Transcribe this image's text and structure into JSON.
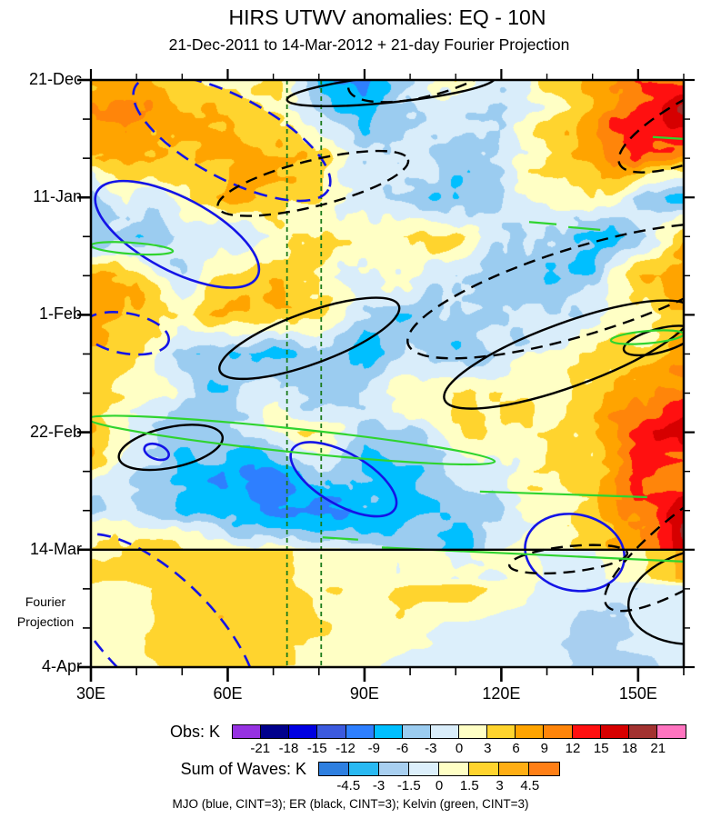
{
  "title": "HIRS UTWV anomalies: EQ - 10N",
  "subtitle": "21-Dec-2011 to 14-Mar-2012 + 21-day Fourier Projection",
  "y_axis": {
    "tick_labels": [
      "21-Dec",
      "11-Jan",
      "1-Feb",
      "22-Feb",
      "14-Mar",
      "4-Apr"
    ],
    "tick_days": [
      0,
      21,
      42,
      63,
      84,
      105
    ],
    "projection_label_line1": "Fourier",
    "projection_label_line2": "Projection"
  },
  "x_axis": {
    "tick_labels": [
      "30E",
      "60E",
      "90E",
      "120E",
      "150E"
    ],
    "tick_lons": [
      30,
      60,
      90,
      120,
      150
    ]
  },
  "colorbars": [
    {
      "label": "Obs: K",
      "ticks": [
        "-21",
        "-18",
        "-15",
        "-12",
        "-9",
        "-6",
        "-3",
        "0",
        "3",
        "6",
        "9",
        "12",
        "15",
        "18",
        "21"
      ],
      "colors": [
        "#9632E1",
        "#00008C",
        "#0000E1",
        "#3C5ADE",
        "#2E7FFF",
        "#00BFFF",
        "#9BCCF0",
        "#D9EDFA",
        "#FFFFC5",
        "#FFD42E",
        "#FFA400",
        "#FF850A",
        "#FF1010",
        "#D60000",
        "#A23230",
        "#FF74C0"
      ]
    },
    {
      "label": "Sum of Waves: K",
      "ticks": [
        "-4.5",
        "-3",
        "-1.5",
        "0",
        "1.5",
        "3",
        "4.5"
      ],
      "colors": [
        "#2E7FE0",
        "#29B9F2",
        "#A8CFF0",
        "#DCEFFB",
        "#FFFFC5",
        "#FFD42E",
        "#FFAE14",
        "#FF7F16"
      ]
    }
  ],
  "legend": "MJO (blue, CINT=3); ER (black, CINT=3); Kelvin (green, CINT=3)",
  "chart_data": {
    "type": "heatmap",
    "title": "HIRS UTWV anomalies: EQ - 10N",
    "subtitle": "21-Dec-2011 to 14-Mar-2012 + 21-day Fourier Projection",
    "x_range_lon_deg_east": [
      30,
      160
    ],
    "y_range_days_from_21Dec2011": [
      0,
      105
    ],
    "observation_end_day": 84,
    "dates": {
      "start": "21-Dec-2011",
      "obs_end": "14-Mar-2012",
      "projection_end": "4-Apr-2012"
    },
    "fill_levels_obs_K": [
      -21,
      -18,
      -15,
      -12,
      -9,
      -6,
      -3,
      0,
      3,
      6,
      9,
      12,
      15,
      18,
      21
    ],
    "fill_levels_sum_K": [
      -4.5,
      -3,
      -1.5,
      0,
      1.5,
      3,
      4.5
    ],
    "lons": [
      30,
      40,
      50,
      60,
      70,
      80,
      90,
      100,
      110,
      120,
      130,
      140,
      150,
      160
    ],
    "days": [
      0,
      7,
      14,
      21,
      28,
      35,
      42,
      49,
      56,
      63,
      70,
      77,
      84,
      91,
      98,
      105
    ],
    "note": "values_K is an approximate reading of the filled anomaly contours; rows 0-12 are observed (K, CINT=3), rows 13-15 are the Fourier projection (sum-of-waves K, CINT=1.5)",
    "values_K": [
      [
        4,
        8,
        5,
        2,
        4,
        -8,
        -9,
        -3,
        1,
        -3,
        4,
        8,
        10,
        12
      ],
      [
        10,
        9,
        6,
        7,
        3,
        -2,
        -6,
        -5,
        -2,
        -4,
        2,
        8,
        14,
        19
      ],
      [
        5,
        7,
        5,
        6,
        6,
        4,
        -2,
        1,
        -5,
        -2,
        4,
        7,
        12,
        8
      ],
      [
        -3,
        -2,
        2,
        6,
        6,
        3,
        -2,
        -4,
        -7,
        -3,
        1,
        4,
        -4,
        -6
      ],
      [
        -5,
        -6,
        -4,
        -2,
        1,
        3,
        2,
        4,
        3,
        -2,
        -5,
        -7,
        -4,
        4
      ],
      [
        6,
        4,
        -2,
        3,
        5,
        2,
        -2,
        1,
        -3,
        -4,
        -6,
        -4,
        6,
        8
      ],
      [
        8,
        6,
        3,
        6,
        7,
        4,
        -4,
        -6,
        -3,
        -2,
        -4,
        -2,
        2,
        6
      ],
      [
        4,
        2,
        -4,
        -6,
        -8,
        -4,
        -6,
        -3,
        -5,
        -2,
        1,
        2,
        4,
        6
      ],
      [
        5,
        3,
        -2,
        -5,
        -3,
        -6,
        -2,
        2,
        3,
        4,
        3,
        4,
        8,
        12
      ],
      [
        6,
        -3,
        -6,
        -4,
        1,
        2,
        -4,
        -3,
        2,
        3,
        2,
        6,
        12,
        16
      ],
      [
        2,
        -4,
        -5,
        -8,
        -11,
        -4,
        -6,
        -8,
        -4,
        -2,
        4,
        3,
        14,
        10
      ],
      [
        -2,
        -4,
        -6,
        -8,
        -10,
        -12,
        -8,
        -6,
        -5,
        -3,
        2,
        4,
        10,
        16
      ],
      [
        4,
        6,
        3,
        2,
        1,
        1,
        -2,
        -4,
        -8,
        -3,
        2,
        3,
        8,
        18
      ],
      [
        0.7,
        0.7,
        2.0,
        2.6,
        2.2,
        1.2,
        0.7,
        2.2,
        2.4,
        1.2,
        -0.7,
        -1.2,
        -1.4,
        -1.2
      ],
      [
        0.7,
        1.0,
        2.4,
        2.8,
        2.5,
        1.4,
        0.7,
        0.7,
        -0.7,
        -0.7,
        -1.4,
        -1.8,
        -1.4,
        -1.2
      ],
      [
        0.7,
        0.7,
        2.0,
        2.4,
        2.0,
        0.7,
        0.7,
        -0.7,
        -0.7,
        -1.2,
        -1.4,
        -1.8,
        -1.8,
        -1.4
      ]
    ],
    "annotations": {
      "vertical_guides": {
        "lons": [
          73,
          80.5
        ],
        "color": "#1A7A1A",
        "style": "dashed"
      },
      "boundary_line": {
        "day": 84,
        "color": "#000000"
      },
      "mjo_color": "#1414E6",
      "er_color": "#000000",
      "kelvin_color": "#2FD42F",
      "mjo_solid_ellipses": [
        {
          "cx_lon": 48.9,
          "cy_day": 27.6,
          "rx_lon": 19.9,
          "ry_day": 6.5,
          "rot_deg": 28
        },
        {
          "cx_lon": 44.4,
          "cy_day": 66.5,
          "rx_lon": 2.8,
          "ry_day": 1.3,
          "rot_deg": 20
        },
        {
          "cx_lon": 85.4,
          "cy_day": 71.4,
          "rx_lon": 13.0,
          "ry_day": 4.6,
          "rot_deg": 30
        },
        {
          "cx_lon": 136.1,
          "cy_day": 84.5,
          "rx_lon": 11.0,
          "ry_day": 6.8,
          "rot_deg": 12
        }
      ],
      "mjo_dashed_ellipses": [
        {
          "cx_lon": 60.9,
          "cy_day": 10.4,
          "rx_lon": 24.0,
          "ry_day": 7.3,
          "rot_deg": 28
        },
        {
          "cx_lon": 37.6,
          "cy_day": 45.3,
          "rx_lon": 9.6,
          "ry_day": 3.6,
          "rot_deg": 10
        },
        {
          "cx_lon": 45.0,
          "cy_day": 98.7,
          "rx_lon": 27.9,
          "ry_day": 9.8,
          "rot_deg": 45
        }
      ],
      "er_solid_ellipses": [
        {
          "cx_lon": 95.8,
          "cy_day": 1.6,
          "rx_lon": 22.9,
          "ry_day": 2.4,
          "rot_deg": -6
        },
        {
          "cx_lon": 77.9,
          "cy_day": 46.2,
          "rx_lon": 20.9,
          "ry_day": 4.6,
          "rot_deg": -20
        },
        {
          "cx_lon": 47.5,
          "cy_day": 65.7,
          "rx_lon": 11.6,
          "ry_day": 3.6,
          "rot_deg": -12
        },
        {
          "cx_lon": 134.7,
          "cy_day": 49.1,
          "rx_lon": 28.9,
          "ry_day": 5.7,
          "rot_deg": -20
        },
        {
          "cx_lon": 154.6,
          "cy_day": 46.6,
          "rx_lon": 8.0,
          "ry_day": 2.1,
          "rot_deg": -15
        },
        {
          "cx_lon": 165.6,
          "cy_day": 92.2,
          "rx_lon": 17.9,
          "ry_day": 8.5,
          "rot_deg": -10
        }
      ],
      "er_dashed_ellipses": [
        {
          "cx_lon": 78.7,
          "cy_day": 18.5,
          "rx_lon": 21.5,
          "ry_day": 4.1,
          "rot_deg": -14
        },
        {
          "cx_lon": 167.6,
          "cy_day": 6.8,
          "rx_lon": 23.9,
          "ry_day": 5.7,
          "rot_deg": -25
        },
        {
          "cx_lon": 103.8,
          "cy_day": -2.1,
          "rx_lon": 17.9,
          "ry_day": 4.9,
          "rot_deg": -15
        },
        {
          "cx_lon": 137.7,
          "cy_day": 37.7,
          "rx_lon": 39.9,
          "ry_day": 7.8,
          "rot_deg": -17
        },
        {
          "cx_lon": 134.7,
          "cy_day": 85.7,
          "rx_lon": 13.0,
          "ry_day": 2.3,
          "rot_deg": -6
        },
        {
          "cx_lon": 167.6,
          "cy_day": 80.0,
          "rx_lon": 29.9,
          "ry_day": 6.5,
          "rot_deg": -35
        }
      ],
      "kelvin_ellipses": [
        {
          "cx_lon": 39.0,
          "cy_day": 30.1,
          "rx_lon": 9.0,
          "ry_day": 1.0,
          "rot_deg": 4
        },
        {
          "cx_lon": 73.9,
          "cy_day": 64.4,
          "rx_lon": 44.9,
          "ry_day": 2.1,
          "rot_deg": 6
        },
        {
          "cx_lon": 152.0,
          "cy_day": 46.0,
          "rx_lon": 8.0,
          "ry_day": 1.1,
          "rot_deg": -5
        }
      ],
      "kelvin_lines": [
        [
          [
            93.8,
            83.6
          ],
          [
            162.0,
            86.2
          ]
        ],
        [
          [
            115.3,
            73.6
          ],
          [
            152.0,
            74.6
          ]
        ],
        [
          [
            126.1,
            25.4
          ],
          [
            132.1,
            25.8
          ]
        ],
        [
          [
            134.7,
            26.3
          ],
          [
            141.7,
            26.8
          ]
        ],
        [
          [
            153.2,
            10.2
          ],
          [
            163.2,
            10.7
          ]
        ],
        [
          [
            80.8,
            81.8
          ],
          [
            88.6,
            82.2
          ]
        ]
      ]
    },
    "legend_text": "MJO (blue, CINT=3); ER (black, CINT=3); Kelvin (green, CINT=3)",
    "colorbar_obs_label": "Obs: K",
    "colorbar_sum_label": "Sum of Waves: K",
    "grid": "off",
    "legend_position": "bottom"
  }
}
